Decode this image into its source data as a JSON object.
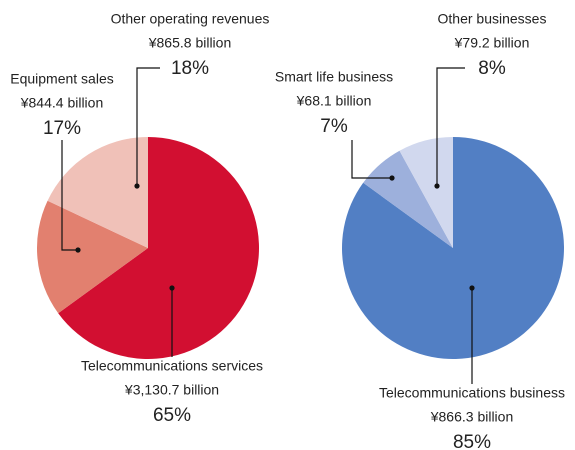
{
  "chart_data": [
    {
      "type": "pie",
      "categories": [
        "Telecommunications services",
        "Equipment sales",
        "Other operating revenues"
      ],
      "amounts": [
        "¥3,130.7 billion",
        "¥844.4 billion",
        "¥865.8 billion"
      ],
      "values": [
        65,
        17,
        18
      ],
      "value_labels": [
        "65%",
        "17%",
        "18%"
      ],
      "colors": [
        "#d20f31",
        "#e2806f",
        "#f0c1b8"
      ]
    },
    {
      "type": "pie",
      "categories": [
        "Telecommunications business",
        "Smart life business",
        "Other businesses"
      ],
      "amounts": [
        "¥866.3 billion",
        "¥68.1 billion",
        "¥79.2 billion"
      ],
      "values": [
        85,
        7,
        8
      ],
      "value_labels": [
        "85%",
        "7%",
        "8%"
      ],
      "colors": [
        "#527fc4",
        "#9db0dc",
        "#d1d8ee"
      ]
    }
  ]
}
